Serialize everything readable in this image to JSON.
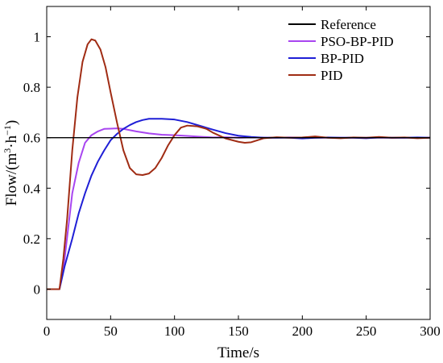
{
  "chart_data": {
    "type": "line",
    "title": "",
    "xlabel": "Time/s",
    "ylabel": {
      "base": "Flow/(m",
      "sup1": "3",
      "mid": "·h",
      "sup2": "−1",
      "end": ")"
    },
    "xlim": [
      0,
      300
    ],
    "ylim": [
      -0.12,
      1.12
    ],
    "xticks": [
      0,
      50,
      100,
      150,
      200,
      250,
      300
    ],
    "yticks": [
      0,
      0.2,
      0.4,
      0.6,
      0.8,
      1
    ],
    "ytick_labels": [
      "0",
      "0.2",
      "0.4",
      "0.6",
      "0.8",
      "1"
    ],
    "grid": false,
    "legend_position": "top-right",
    "series": [
      {
        "name": "Reference",
        "color": "#000000",
        "points": [
          [
            0,
            0.6
          ],
          [
            300,
            0.6
          ]
        ]
      },
      {
        "name": "PSO-BP-PID",
        "color": "#a845f0",
        "points": [
          [
            0,
            0
          ],
          [
            10,
            0
          ],
          [
            14,
            0.12
          ],
          [
            20,
            0.38
          ],
          [
            25,
            0.5
          ],
          [
            30,
            0.58
          ],
          [
            35,
            0.61
          ],
          [
            40,
            0.625
          ],
          [
            45,
            0.635
          ],
          [
            50,
            0.636
          ],
          [
            55,
            0.637
          ],
          [
            60,
            0.635
          ],
          [
            70,
            0.625
          ],
          [
            80,
            0.617
          ],
          [
            90,
            0.612
          ],
          [
            100,
            0.61
          ],
          [
            110,
            0.607
          ],
          [
            120,
            0.604
          ],
          [
            130,
            0.601
          ],
          [
            140,
            0.602
          ],
          [
            150,
            0.6
          ],
          [
            160,
            0.601
          ],
          [
            175,
            0.6
          ],
          [
            190,
            0.601
          ],
          [
            210,
            0.6
          ],
          [
            230,
            0.6
          ],
          [
            250,
            0.6
          ],
          [
            270,
            0.6
          ],
          [
            300,
            0.6
          ]
        ]
      },
      {
        "name": "BP-PID",
        "color": "#1f1fd6",
        "points": [
          [
            0,
            0
          ],
          [
            10,
            0
          ],
          [
            14,
            0.09
          ],
          [
            20,
            0.2
          ],
          [
            25,
            0.3
          ],
          [
            30,
            0.38
          ],
          [
            35,
            0.45
          ],
          [
            40,
            0.505
          ],
          [
            45,
            0.55
          ],
          [
            50,
            0.59
          ],
          [
            55,
            0.615
          ],
          [
            60,
            0.635
          ],
          [
            65,
            0.65
          ],
          [
            70,
            0.662
          ],
          [
            75,
            0.67
          ],
          [
            80,
            0.675
          ],
          [
            90,
            0.675
          ],
          [
            100,
            0.672
          ],
          [
            110,
            0.662
          ],
          [
            120,
            0.647
          ],
          [
            130,
            0.632
          ],
          [
            140,
            0.618
          ],
          [
            150,
            0.608
          ],
          [
            160,
            0.603
          ],
          [
            170,
            0.6
          ],
          [
            180,
            0.6
          ],
          [
            190,
            0.6
          ],
          [
            200,
            0.597
          ],
          [
            210,
            0.6
          ],
          [
            220,
            0.601
          ],
          [
            230,
            0.6
          ],
          [
            240,
            0.6
          ],
          [
            250,
            0.598
          ],
          [
            260,
            0.601
          ],
          [
            270,
            0.6
          ],
          [
            280,
            0.6
          ],
          [
            290,
            0.601
          ],
          [
            300,
            0.6
          ]
        ]
      },
      {
        "name": "PID",
        "color": "#a02c14",
        "points": [
          [
            0,
            0
          ],
          [
            10,
            0
          ],
          [
            13,
            0.12
          ],
          [
            16,
            0.28
          ],
          [
            20,
            0.55
          ],
          [
            24,
            0.76
          ],
          [
            28,
            0.9
          ],
          [
            32,
            0.97
          ],
          [
            35,
            0.99
          ],
          [
            38,
            0.985
          ],
          [
            42,
            0.95
          ],
          [
            46,
            0.88
          ],
          [
            50,
            0.78
          ],
          [
            55,
            0.66
          ],
          [
            60,
            0.55
          ],
          [
            65,
            0.48
          ],
          [
            70,
            0.455
          ],
          [
            75,
            0.452
          ],
          [
            80,
            0.458
          ],
          [
            85,
            0.48
          ],
          [
            90,
            0.52
          ],
          [
            95,
            0.57
          ],
          [
            100,
            0.61
          ],
          [
            105,
            0.64
          ],
          [
            110,
            0.648
          ],
          [
            118,
            0.645
          ],
          [
            125,
            0.635
          ],
          [
            130,
            0.62
          ],
          [
            140,
            0.597
          ],
          [
            150,
            0.584
          ],
          [
            155,
            0.58
          ],
          [
            160,
            0.582
          ],
          [
            165,
            0.59
          ],
          [
            170,
            0.598
          ],
          [
            180,
            0.602
          ],
          [
            190,
            0.6
          ],
          [
            200,
            0.601
          ],
          [
            210,
            0.605
          ],
          [
            220,
            0.6
          ],
          [
            230,
            0.598
          ],
          [
            240,
            0.601
          ],
          [
            250,
            0.6
          ],
          [
            260,
            0.603
          ],
          [
            270,
            0.6
          ],
          [
            280,
            0.601
          ],
          [
            290,
            0.598
          ],
          [
            300,
            0.6
          ]
        ]
      }
    ]
  }
}
